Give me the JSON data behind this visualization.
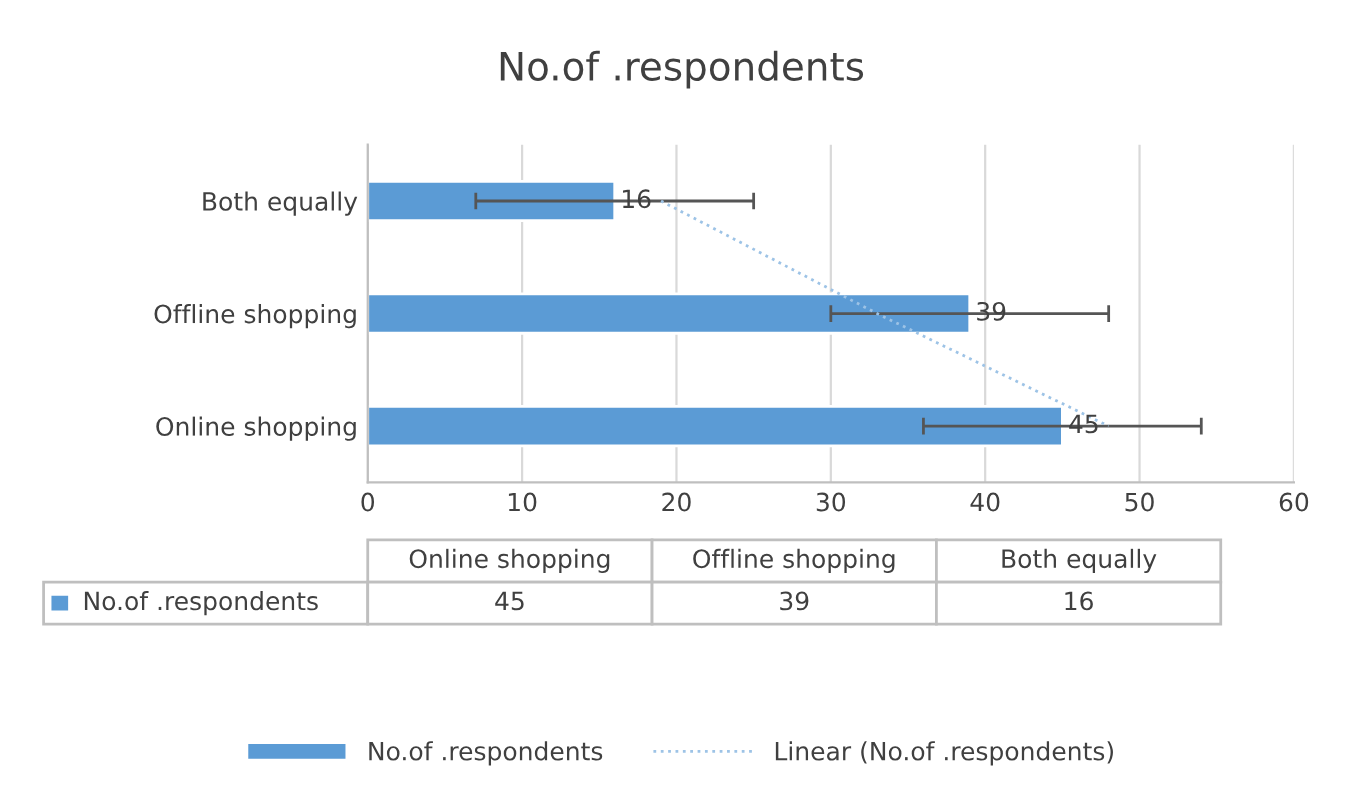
{
  "chart_data": {
    "type": "bar",
    "orientation": "horizontal",
    "title": "No.of .respondents",
    "categories": [
      "Both equally",
      "Offline shopping",
      "Online shopping"
    ],
    "series": [
      {
        "name": "No.of .respondents",
        "color": "#5b9bd5",
        "values": [
          16,
          39,
          45
        ],
        "errors": [
          9,
          9,
          9
        ],
        "value_labels": [
          "16",
          "39",
          "45"
        ]
      },
      {
        "name": "Linear (No.of .respondents)",
        "type": "line",
        "color": "#9dc3e6",
        "line_style": "dotted",
        "values": [
          19,
          33,
          48
        ]
      }
    ],
    "xlim": [
      0,
      60
    ],
    "xticks": [
      0,
      10,
      20,
      30,
      40,
      50,
      60
    ],
    "grid": "x",
    "legend": "bottom"
  }
}
